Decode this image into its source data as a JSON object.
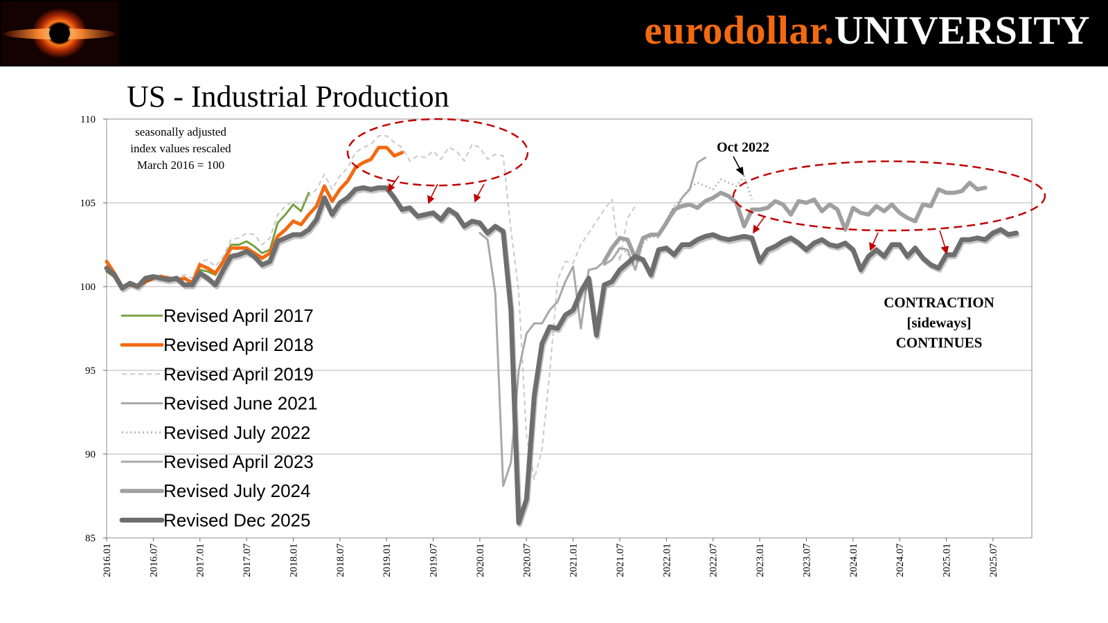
{
  "header": {
    "brand_part1": "eurodollar.",
    "brand_part2": "UNIVERSITY",
    "logo_icon": "black-hole-logo-icon",
    "brand_orange": "#f26a10"
  },
  "chart_data": {
    "type": "line",
    "title": "US - Industrial Production",
    "subtitle_lines": [
      "seasonally adjusted",
      "index values rescaled",
      "March 2016 = 100"
    ],
    "xlabel": "",
    "ylabel": "",
    "ylim": [
      85,
      110
    ],
    "yticks": [
      85,
      90,
      95,
      100,
      105,
      110
    ],
    "xlim": [
      "2016-01",
      "2025-12"
    ],
    "xticks": [
      "2016.01",
      "2016.07",
      "2017.01",
      "2017.07",
      "2018.01",
      "2018.07",
      "2019.01",
      "2019.07",
      "2020.01",
      "2020.07",
      "2021.01",
      "2021.07",
      "2022.01",
      "2022.07",
      "2023.01",
      "2023.07",
      "2024.01",
      "2024.07",
      "2025.01",
      "2025.07"
    ],
    "grid": "horizontal",
    "legend_position": "left",
    "annotations": {
      "oct_label": "Oct 2022",
      "contraction_lines": [
        "CONTRACTION",
        "[sideways]",
        "CONTINUES"
      ]
    },
    "series": [
      {
        "name": "Revised April 2017",
        "color": "#77a040",
        "width": 3,
        "dash": "solid",
        "start": "2016-01",
        "values": [
          100.9,
          100.6,
          100.0,
          100.2,
          100.1,
          100.3,
          100.5,
          100.6,
          100.5,
          100.4,
          100.5,
          100.3,
          101.0,
          100.9,
          100.7,
          101.6,
          102.5,
          102.5,
          102.7,
          102.4,
          102.0,
          102.2,
          103.8,
          104.3,
          104.9,
          104.5,
          105.6
        ]
      },
      {
        "name": "Revised April 2018",
        "color": "#f26a10",
        "width": 5,
        "dash": "solid",
        "start": "2016-01",
        "values": [
          101.5,
          100.8,
          100.0,
          100.1,
          100.0,
          100.3,
          100.5,
          100.6,
          100.5,
          100.4,
          100.5,
          100.2,
          101.3,
          101.1,
          100.8,
          101.5,
          102.3,
          102.3,
          102.3,
          102.0,
          101.7,
          102.0,
          103.0,
          103.4,
          103.9,
          103.7,
          104.3,
          104.8,
          106.0,
          105.1,
          105.8,
          106.3,
          107.1,
          107.4,
          107.6,
          108.3,
          108.3,
          107.8,
          108.0
        ]
      },
      {
        "name": "Revised April 2019",
        "color": "#c8c8c8",
        "width": 2,
        "dash": "7,5",
        "start": "2016-01",
        "values": [
          101.5,
          100.8,
          100.1,
          100.2,
          100.1,
          100.5,
          100.6,
          100.7,
          100.6,
          100.5,
          100.7,
          100.5,
          101.5,
          101.6,
          101.2,
          101.8,
          102.8,
          102.9,
          103.2,
          103.1,
          102.5,
          102.9,
          104.3,
          104.8,
          105.1,
          104.9,
          105.4,
          105.8,
          106.7,
          105.8,
          106.6,
          107.1,
          108.0,
          108.3,
          108.5,
          109.0,
          109.0,
          108.6,
          108.3,
          107.5,
          107.8,
          107.7,
          108.1,
          107.6,
          108.3,
          108.1,
          107.5,
          108.5,
          108.3,
          107.6,
          107.9,
          107.8,
          103.4,
          99.7,
          91.1,
          88.5,
          90.3,
          94.9,
          100.4,
          101.5,
          101.4,
          102.5,
          103.2,
          103.9,
          104.6,
          105.2,
          101.5,
          104.1,
          104.8
        ]
      },
      {
        "name": "Revised June 2021",
        "color": "#a8a8a8",
        "width": 3,
        "dash": "solid",
        "start": "2020-01",
        "values": [
          103.2,
          102.8,
          99.6,
          88.1,
          89.5,
          95.0,
          97.2,
          97.8,
          97.8,
          98.6,
          99.1,
          100.3,
          101.2,
          97.5,
          101.0,
          101.1,
          101.5
        ]
      },
      {
        "name": "Revised July 2022",
        "color": "#b8b8b8",
        "width": 3,
        "dash": "2,4",
        "start": "2021-05",
        "values": [
          101.3,
          101.6,
          102.3,
          102.0,
          101.0,
          102.6,
          103.0,
          102.9,
          104.0,
          104.8,
          105.3,
          105.9,
          106.2,
          106.0,
          105.8,
          106.4,
          106.2,
          106.0,
          106.6,
          105.2
        ]
      },
      {
        "name": "Revised April 2023",
        "color": "#a8a8a8",
        "width": 3,
        "dash": "solid",
        "start": "2021-05",
        "values": [
          101.3,
          101.6,
          102.3,
          102.2,
          101.0,
          102.8,
          103.1,
          103.0,
          103.8,
          104.4,
          105.3,
          105.8,
          107.4,
          107.7
        ]
      },
      {
        "name": "Revised July 2024",
        "color": "#a0a0a0",
        "width": 6,
        "dash": "solid",
        "start": "2021-05",
        "values": [
          101.5,
          102.3,
          102.9,
          102.8,
          101.7,
          102.9,
          103.1,
          103.1,
          103.8,
          104.6,
          104.8,
          104.9,
          104.7,
          105.1,
          105.3,
          105.6,
          105.4,
          105.0,
          103.6,
          104.6,
          104.6,
          104.7,
          105.1,
          104.9,
          104.3,
          105.1,
          105.0,
          105.2,
          104.5,
          104.9,
          104.6,
          103.4,
          104.7,
          104.4,
          104.3,
          104.8,
          104.5,
          104.9,
          104.4,
          104.1,
          103.9,
          104.9,
          104.8,
          105.8,
          105.6,
          105.6,
          105.7,
          106.2,
          105.8,
          105.9
        ]
      },
      {
        "name": "Revised Dec 2025",
        "color": "#6e6e6e",
        "width": 7,
        "dash": "solid",
        "start": "2016-01",
        "values": [
          101.1,
          100.7,
          99.9,
          100.2,
          100.0,
          100.5,
          100.6,
          100.5,
          100.4,
          100.5,
          100.1,
          100.1,
          100.8,
          100.5,
          100.1,
          101.0,
          101.8,
          101.9,
          102.1,
          101.8,
          101.3,
          101.5,
          102.7,
          102.9,
          103.1,
          103.1,
          103.4,
          104.0,
          105.3,
          104.3,
          105.0,
          105.3,
          105.8,
          105.9,
          105.8,
          105.9,
          105.9,
          105.3,
          104.6,
          104.7,
          104.2,
          104.3,
          104.4,
          104.0,
          104.6,
          104.3,
          103.6,
          103.9,
          103.8,
          103.2,
          103.6,
          103.3,
          98.6,
          85.9,
          87.3,
          93.5,
          96.6,
          97.6,
          97.5,
          98.3,
          98.6,
          99.7,
          100.5,
          97.1,
          100.1,
          100.3,
          101.0,
          101.4,
          101.8,
          101.6,
          100.7,
          102.2,
          102.3,
          101.9,
          102.5,
          102.5,
          102.8,
          103.0,
          103.1,
          102.9,
          102.8,
          102.9,
          103.0,
          102.9,
          101.5,
          102.2,
          102.4,
          102.7,
          102.9,
          102.6,
          102.2,
          102.6,
          102.8,
          102.5,
          102.4,
          102.6,
          102.2,
          101.0,
          101.8,
          102.2,
          101.8,
          102.5,
          102.5,
          101.8,
          102.3,
          101.7,
          101.3,
          101.1,
          101.9,
          101.9,
          102.8,
          102.8,
          102.9,
          102.8,
          103.2,
          103.4,
          103.1,
          103.2
        ]
      }
    ]
  }
}
